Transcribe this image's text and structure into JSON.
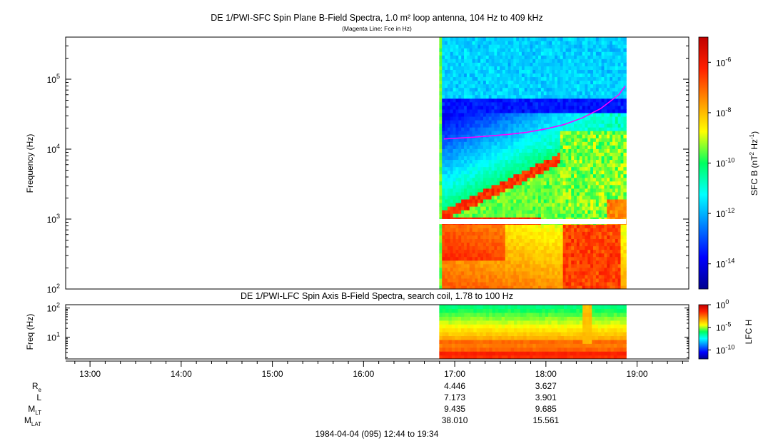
{
  "chart_data": [
    {
      "panel": "upper",
      "type": "heatmap",
      "title": "DE 1/PWI-SFC  Spin Plane B-Field Spectra, 1.0 m² loop antenna, 104 Hz to 409 kHz",
      "subtitle": "(Magenta Line: Fce in Hz)",
      "ylabel": "Frequency (Hz)",
      "yscale": "log",
      "ylim": [
        100,
        400000
      ],
      "yticks": [
        {
          "value": 100,
          "base": "10",
          "exp": "2"
        },
        {
          "value": 1000,
          "base": "10",
          "exp": "3"
        },
        {
          "value": 10000,
          "base": "10",
          "exp": "4"
        },
        {
          "value": 100000,
          "base": "10",
          "exp": "5"
        }
      ],
      "data_time_range_hours": [
        16.83,
        18.88
      ],
      "overlay_series": {
        "color": "#ff00ff",
        "x_hours": [
          16.88,
          17.0,
          17.2,
          17.4,
          17.6,
          17.8,
          18.0,
          18.2,
          18.4,
          18.6,
          18.8,
          18.87
        ],
        "y_hz": [
          14000,
          14300,
          14800,
          15500,
          16300,
          17500,
          19500,
          22500,
          28000,
          38000,
          60000,
          80000
        ]
      },
      "colorbar": {
        "label_base": "SFC B (nT",
        "label_exp1": "2",
        "label_mid": " Hz",
        "label_exp2": "-1",
        "label_end": ")",
        "scale": "log",
        "range_exp": [
          -15,
          -5
        ],
        "ticks": [
          {
            "value": -6,
            "base": "10",
            "exp": "-6"
          },
          {
            "value": -8,
            "base": "10",
            "exp": "-8"
          },
          {
            "value": -10,
            "base": "10",
            "exp": "-10"
          },
          {
            "value": -12,
            "base": "10",
            "exp": "-12"
          },
          {
            "value": -14,
            "base": "10",
            "exp": "-14"
          }
        ]
      }
    },
    {
      "panel": "lower",
      "type": "heatmap",
      "title": "DE 1/PWI-LFC  Spin Axis B-Field Spectra, search coil, 1.78 to 100 Hz",
      "ylabel": "Freq (Hz)",
      "yscale": "log",
      "ylim": [
        1.78,
        130
      ],
      "yticks": [
        {
          "value": 10,
          "base": "10",
          "exp": "1"
        },
        {
          "value": 100,
          "base": "10",
          "exp": "2"
        }
      ],
      "data_time_range_hours": [
        16.83,
        18.88
      ],
      "colorbar": {
        "label": "LFC H",
        "scale": "log",
        "range_exp": [
          -12,
          0
        ],
        "ticks": [
          {
            "value": 0,
            "base": "10",
            "exp": "0"
          },
          {
            "value": -5,
            "base": "10",
            "exp": "-5"
          },
          {
            "value": -10,
            "base": "10",
            "exp": "-10"
          }
        ]
      }
    }
  ],
  "x_axis": {
    "range_hours": [
      12.733,
      19.567
    ],
    "ticks": [
      {
        "hour": 13,
        "label": "13:00"
      },
      {
        "hour": 14,
        "label": "14:00"
      },
      {
        "hour": 15,
        "label": "15:00"
      },
      {
        "hour": 16,
        "label": "16:00"
      },
      {
        "hour": 17,
        "label": "17:00"
      },
      {
        "hour": 18,
        "label": "18:00"
      },
      {
        "hour": 19,
        "label": "19:00"
      }
    ]
  },
  "ephemeris": {
    "rows": [
      {
        "name": "Re",
        "base": "R",
        "sub": "e",
        "values": [
          {
            "hour": 17,
            "text": "4.446"
          },
          {
            "hour": 18,
            "text": "3.627"
          }
        ]
      },
      {
        "name": "L",
        "base": "L",
        "sub": "",
        "values": [
          {
            "hour": 17,
            "text": "7.173"
          },
          {
            "hour": 18,
            "text": "3.901"
          }
        ]
      },
      {
        "name": "MLT",
        "base": "M",
        "sub": "LT",
        "values": [
          {
            "hour": 17,
            "text": "9.435"
          },
          {
            "hour": 18,
            "text": "9.685"
          }
        ]
      },
      {
        "name": "MLAT",
        "base": "M",
        "sub": "LAT",
        "values": [
          {
            "hour": 17,
            "text": "38.010"
          },
          {
            "hour": 18,
            "text": "15.561"
          }
        ]
      }
    ]
  },
  "footer": {
    "date_range": "1984-04-04 (095) 12:44 to 19:34"
  }
}
